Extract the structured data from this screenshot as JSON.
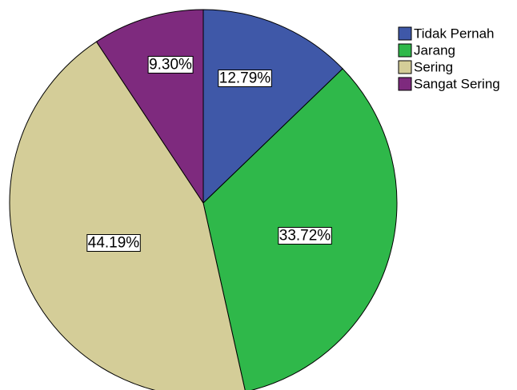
{
  "chart_data": {
    "type": "pie",
    "categories": [
      "Tidak Pernah",
      "Jarang",
      "Sering",
      "Sangat Sering"
    ],
    "values": [
      12.79,
      33.72,
      44.19,
      9.3
    ],
    "labels": [
      "12.79%",
      "33.72%",
      "44.19%",
      "9.30%"
    ],
    "colors": [
      "#3f58a8",
      "#2fb84a",
      "#d4cd98",
      "#7e2a7e"
    ],
    "start_angle_deg": 0,
    "direction": "clockwise",
    "legend_placement": "top-right",
    "title": ""
  }
}
